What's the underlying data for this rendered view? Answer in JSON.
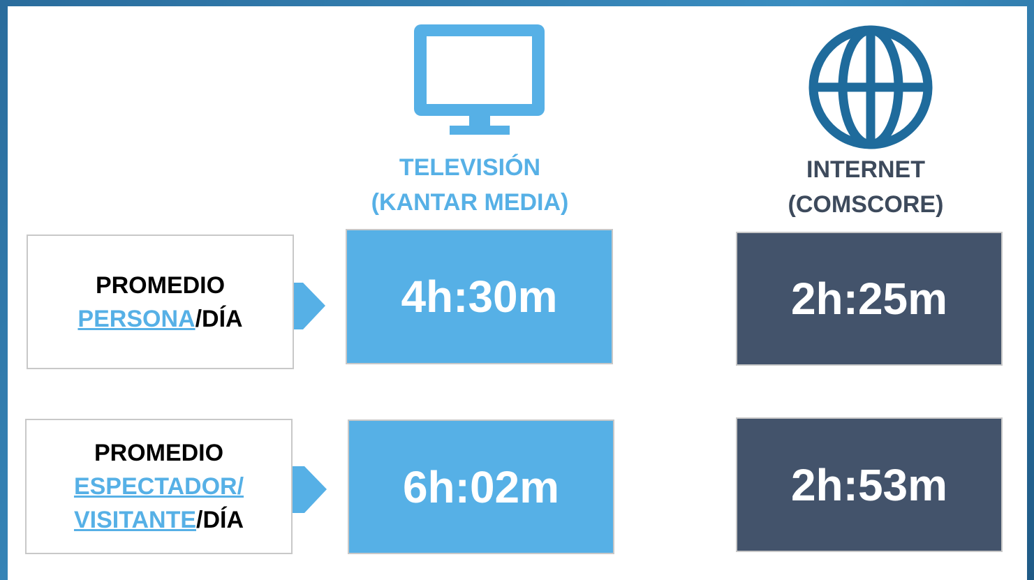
{
  "columns": [
    {
      "title": "TELEVISIÓN",
      "subtitle": "(KANTAR MEDIA)"
    },
    {
      "title": "INTERNET",
      "subtitle": "(COMSCORE)"
    }
  ],
  "rows": [
    {
      "label": {
        "title": "PROMEDIO",
        "link": [
          "PERSONA"
        ],
        "suffix": "/DÍA"
      },
      "values": [
        "4h:30m",
        "2h:25m"
      ]
    },
    {
      "label": {
        "title": "PROMEDIO",
        "link": [
          "ESPECTADOR/",
          "VISITANTE"
        ],
        "suffix": "/DÍA"
      },
      "values": [
        "6h:02m",
        "2h:53m"
      ]
    }
  ]
}
